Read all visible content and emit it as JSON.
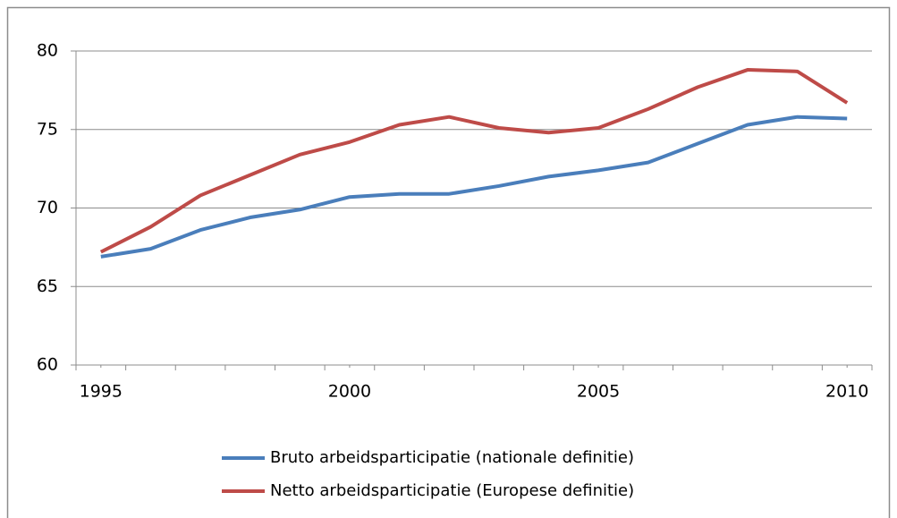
{
  "chart_data": {
    "type": "line",
    "x": [
      1995,
      1996,
      1997,
      1998,
      1999,
      2000,
      2001,
      2002,
      2003,
      2004,
      2005,
      2006,
      2007,
      2008,
      2009,
      2010
    ],
    "series": [
      {
        "name": "Bruto arbeidsparticipatie (nationale definitie)",
        "color": "#4a7ebb",
        "values": [
          66.9,
          67.4,
          68.6,
          69.4,
          69.9,
          70.7,
          70.9,
          70.9,
          71.4,
          72.0,
          72.4,
          72.9,
          74.1,
          75.3,
          75.8,
          75.7
        ]
      },
      {
        "name": "Netto arbeidsparticipatie (Europese definitie)",
        "color": "#be4b48",
        "values": [
          67.2,
          68.8,
          70.8,
          72.1,
          73.4,
          74.2,
          75.3,
          75.8,
          75.1,
          74.8,
          75.1,
          76.3,
          77.7,
          78.8,
          78.7,
          76.7
        ]
      }
    ],
    "xlim": [
      1994.5,
      2010.5
    ],
    "xticks": [
      1995,
      2000,
      2005,
      2010
    ],
    "ylim": [
      60,
      80
    ],
    "yticks": [
      60,
      65,
      70,
      75,
      80
    ],
    "grid": true,
    "legend": "bottom"
  }
}
